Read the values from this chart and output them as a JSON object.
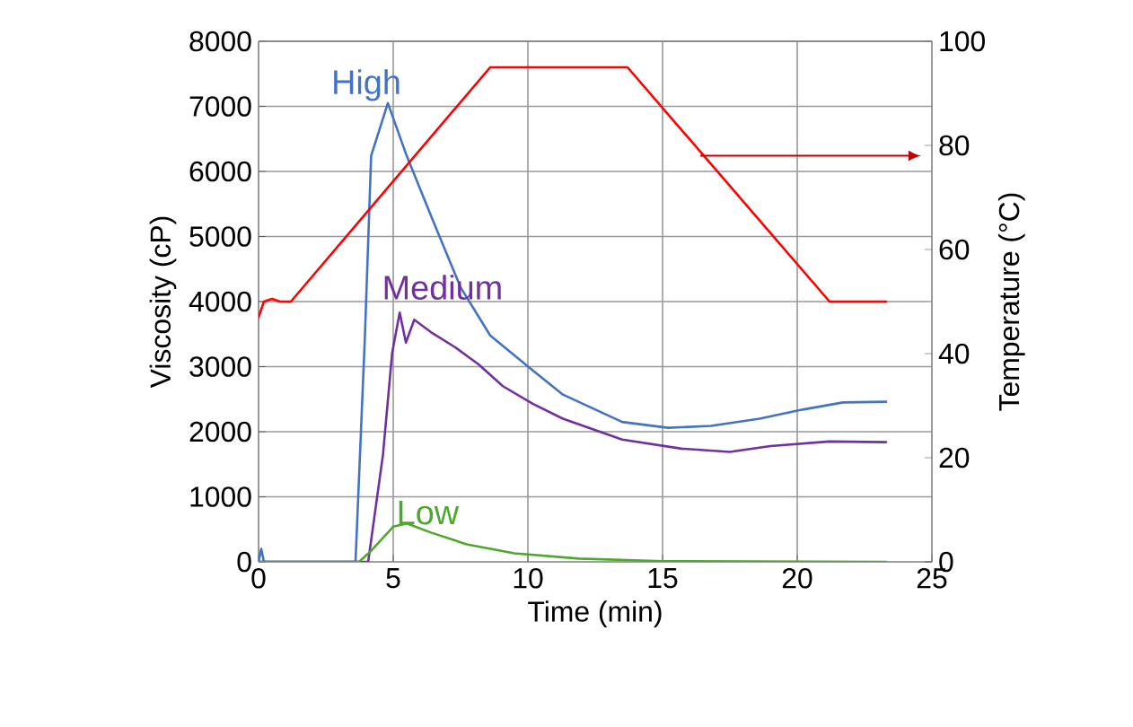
{
  "chart_data": {
    "type": "line",
    "xlabel": "Time (min)",
    "ylabel": "Viscosity (cP)",
    "y2label": "Temperature (°C)",
    "xlim": [
      0,
      25
    ],
    "xticks": [
      0,
      5,
      10,
      15,
      20,
      25
    ],
    "ylim": [
      0,
      8000
    ],
    "yticks": [
      0,
      1000,
      2000,
      3000,
      4000,
      5000,
      6000,
      7000,
      8000
    ],
    "y2lim": [
      0,
      100
    ],
    "y2ticks": [
      0,
      20,
      40,
      60,
      80,
      100
    ],
    "grid": true,
    "series": [
      {
        "name": "High",
        "color": "#4472c4",
        "x": [
          0,
          0.1,
          0.2,
          3.6,
          3.95,
          4.18,
          4.8,
          5.5,
          6.4,
          7.5,
          8.6,
          10.07,
          11.3,
          13.5,
          15.2,
          16.8,
          18.6,
          20.2,
          21.7,
          23.3
        ],
        "values": [
          0,
          200,
          0,
          0,
          3480,
          6240,
          7050,
          6240,
          5320,
          4220,
          3480,
          2980,
          2570,
          2150,
          2060,
          2090,
          2200,
          2340,
          2450,
          2460
        ]
      },
      {
        "name": "Medium",
        "color": "#7030a0",
        "x": [
          0,
          4.07,
          4.62,
          4.96,
          5.24,
          5.47,
          5.78,
          6.4,
          7.29,
          8.18,
          9.07,
          10.18,
          11.3,
          13.5,
          15.7,
          17.5,
          19.0,
          21.2,
          23.3
        ],
        "values": [
          0,
          0,
          1650,
          3210,
          3830,
          3370,
          3720,
          3530,
          3300,
          3030,
          2700,
          2430,
          2200,
          1880,
          1740,
          1690,
          1780,
          1850,
          1840
        ]
      },
      {
        "name": "Low",
        "color": "#4ea72e",
        "x": [
          0,
          3.73,
          4.18,
          5.0,
          5.51,
          6.4,
          7.73,
          9.5,
          11.9,
          15,
          23.3
        ],
        "values": [
          0,
          0,
          170,
          540,
          590,
          450,
          270,
          130,
          50,
          10,
          0
        ]
      },
      {
        "color": "#ff0000",
        "axis": "y2",
        "x": [
          0,
          0.2,
          0.5,
          0.8,
          1.2,
          8.6,
          13.7,
          21.2,
          23.3
        ],
        "values": [
          47,
          50,
          50.5,
          50,
          50,
          95,
          95,
          50,
          50
        ]
      }
    ]
  }
}
